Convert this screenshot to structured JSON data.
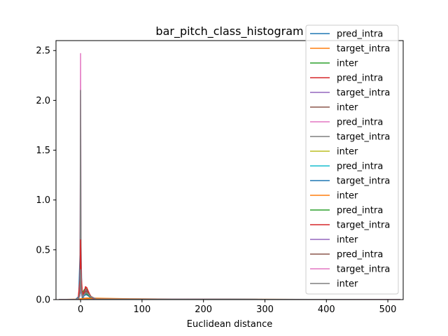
{
  "chart_data": {
    "type": "line",
    "title": "bar_pitch_class_histogram",
    "xlabel": "Euclidean distance",
    "ylabel": "",
    "xlim": [
      -40,
      525
    ],
    "ylim": [
      0,
      2.6
    ],
    "x_ticks": [
      0,
      100,
      200,
      300,
      400,
      500
    ],
    "y_ticks": [
      0.0,
      0.5,
      1.0,
      1.5,
      2.0,
      2.5
    ],
    "x_tick_labels": [
      "0",
      "100",
      "200",
      "300",
      "400",
      "500"
    ],
    "y_tick_labels": [
      "0.0",
      "0.5",
      "1.0",
      "1.5",
      "2.0",
      "2.5"
    ],
    "grid": false,
    "legend_position": "top-right",
    "series": [
      {
        "name": "pred_intra",
        "color": "#1f77b4",
        "x": [
          -35,
          -8,
          -3,
          -1,
          0,
          1,
          2,
          4,
          8,
          20,
          60,
          150,
          300,
          520
        ],
        "y": [
          0,
          0.002,
          0.03,
          0.45,
          0.9,
          0.4,
          0.08,
          0.02,
          0.008,
          0.004,
          0.002,
          0.001,
          0.0,
          0
        ]
      },
      {
        "name": "target_intra",
        "color": "#ff7f0e",
        "x": [
          -35,
          -5,
          0,
          5,
          10,
          20,
          40,
          80,
          150,
          250,
          400,
          520
        ],
        "y": [
          0,
          0.004,
          0.008,
          0.012,
          0.016,
          0.015,
          0.012,
          0.008,
          0.005,
          0.003,
          0.001,
          0
        ]
      },
      {
        "name": "inter",
        "color": "#2ca02c",
        "x": [
          -35,
          -4,
          -1,
          0,
          1,
          2,
          4,
          6,
          8,
          10,
          12,
          15,
          18,
          30,
          520
        ],
        "y": [
          0,
          0.002,
          0.05,
          0.3,
          0.12,
          0.06,
          0.08,
          0.1,
          0.11,
          0.1,
          0.07,
          0.03,
          0.01,
          0.002,
          0
        ]
      },
      {
        "name": "pred_intra",
        "color": "#d62728",
        "x": [
          -35,
          -4,
          -1,
          0,
          1,
          3,
          6,
          8,
          10,
          12,
          15,
          18,
          22,
          30,
          520
        ],
        "y": [
          0,
          0.002,
          0.2,
          0.85,
          0.25,
          0.05,
          0.08,
          0.12,
          0.12,
          0.09,
          0.05,
          0.02,
          0.008,
          0.002,
          0
        ]
      },
      {
        "name": "target_intra",
        "color": "#9467bd",
        "x": [
          -35,
          -4,
          -1,
          0,
          1,
          3,
          6,
          8,
          10,
          13,
          16,
          25,
          520
        ],
        "y": [
          0,
          0.002,
          0.1,
          0.45,
          0.15,
          0.04,
          0.07,
          0.1,
          0.09,
          0.05,
          0.02,
          0.004,
          0
        ]
      },
      {
        "name": "inter",
        "color": "#8c564b",
        "x": [
          -35,
          -4,
          -1,
          0,
          1,
          3,
          6,
          9,
          11,
          14,
          18,
          25,
          520
        ],
        "y": [
          0,
          0.002,
          0.08,
          0.35,
          0.12,
          0.04,
          0.06,
          0.09,
          0.08,
          0.05,
          0.02,
          0.004,
          0
        ]
      },
      {
        "name": "pred_intra",
        "color": "#e377c2",
        "x": [
          -35,
          -3,
          -1,
          -0.5,
          0,
          0.5,
          1,
          3,
          520
        ],
        "y": [
          0,
          0.002,
          0.1,
          1.2,
          2.47,
          1.1,
          0.12,
          0.004,
          0
        ]
      },
      {
        "name": "target_intra",
        "color": "#7f7f7f",
        "x": [
          -35,
          -3,
          -1,
          -0.5,
          0,
          0.5,
          1,
          3,
          520
        ],
        "y": [
          0,
          0.002,
          0.1,
          1.0,
          2.1,
          0.95,
          0.1,
          0.004,
          0
        ]
      },
      {
        "name": "inter",
        "color": "#bcbd22",
        "x": [
          -35,
          -4,
          -1,
          0,
          1,
          3,
          6,
          9,
          12,
          16,
          25,
          520
        ],
        "y": [
          0,
          0.002,
          0.06,
          0.3,
          0.1,
          0.03,
          0.05,
          0.07,
          0.06,
          0.03,
          0.005,
          0
        ]
      },
      {
        "name": "pred_intra",
        "color": "#17becf",
        "x": [
          -35,
          -4,
          -1,
          0,
          1,
          3,
          6,
          9,
          12,
          16,
          25,
          520
        ],
        "y": [
          0,
          0.002,
          0.05,
          0.25,
          0.08,
          0.03,
          0.04,
          0.06,
          0.05,
          0.03,
          0.005,
          0
        ]
      },
      {
        "name": "target_intra",
        "color": "#1f77b4",
        "x": [
          -35,
          -4,
          -1,
          0,
          1,
          3,
          6,
          9,
          12,
          16,
          25,
          520
        ],
        "y": [
          0,
          0.002,
          0.04,
          0.2,
          0.07,
          0.02,
          0.04,
          0.05,
          0.04,
          0.02,
          0.004,
          0
        ]
      },
      {
        "name": "inter",
        "color": "#ff7f0e",
        "x": [
          -35,
          -5,
          0,
          5,
          10,
          20,
          40,
          80,
          150,
          250,
          400,
          520
        ],
        "y": [
          0,
          0.003,
          0.006,
          0.01,
          0.013,
          0.012,
          0.01,
          0.007,
          0.004,
          0.002,
          0.001,
          0
        ]
      },
      {
        "name": "pred_intra",
        "color": "#2ca02c",
        "x": [
          -35,
          -4,
          -1,
          0,
          1,
          3,
          6,
          9,
          12,
          16,
          25,
          520
        ],
        "y": [
          0,
          0.002,
          0.05,
          0.28,
          0.09,
          0.03,
          0.05,
          0.06,
          0.05,
          0.025,
          0.004,
          0
        ]
      },
      {
        "name": "target_intra",
        "color": "#d62728",
        "x": [
          -35,
          -4,
          -1,
          0,
          1,
          3,
          6,
          8,
          10,
          12,
          15,
          18,
          22,
          30,
          520
        ],
        "y": [
          0,
          0.002,
          0.15,
          0.6,
          0.2,
          0.05,
          0.08,
          0.13,
          0.12,
          0.09,
          0.05,
          0.02,
          0.008,
          0.002,
          0
        ]
      },
      {
        "name": "inter",
        "color": "#9467bd",
        "x": [
          -35,
          -4,
          -1,
          0,
          1,
          3,
          6,
          9,
          12,
          16,
          25,
          520
        ],
        "y": [
          0,
          0.002,
          0.05,
          0.22,
          0.08,
          0.03,
          0.05,
          0.07,
          0.06,
          0.03,
          0.005,
          0
        ]
      },
      {
        "name": "pred_intra",
        "color": "#8c564b",
        "x": [
          -35,
          -4,
          -1,
          0,
          1,
          3,
          6,
          9,
          12,
          16,
          25,
          520
        ],
        "y": [
          0,
          0.002,
          0.06,
          0.3,
          0.1,
          0.03,
          0.06,
          0.08,
          0.07,
          0.035,
          0.006,
          0
        ]
      },
      {
        "name": "target_intra",
        "color": "#e377c2",
        "x": [
          -35,
          -4,
          -1,
          0,
          1,
          3,
          6,
          9,
          12,
          16,
          25,
          520
        ],
        "y": [
          0,
          0.002,
          0.05,
          0.25,
          0.09,
          0.03,
          0.05,
          0.07,
          0.06,
          0.03,
          0.005,
          0
        ]
      },
      {
        "name": "inter",
        "color": "#7f7f7f",
        "x": [
          -35,
          -4,
          -1,
          0,
          1,
          3,
          6,
          9,
          12,
          16,
          25,
          520
        ],
        "y": [
          0,
          0.002,
          0.06,
          0.3,
          0.1,
          0.03,
          0.05,
          0.07,
          0.06,
          0.03,
          0.005,
          0
        ]
      }
    ]
  }
}
